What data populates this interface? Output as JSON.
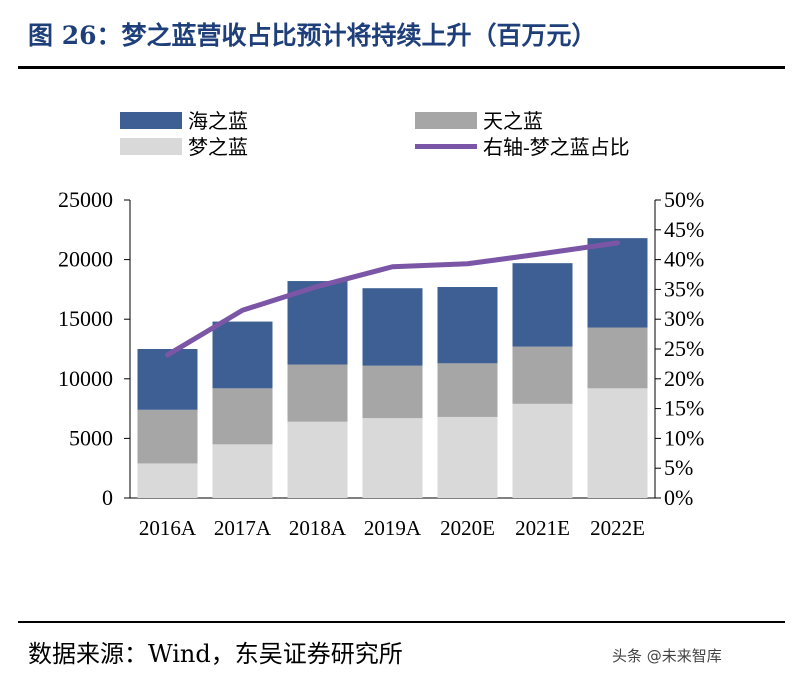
{
  "title": "图 26：梦之蓝营收占比预计将持续上升（百万元）",
  "source": "数据来源：Wind，东吴证券研究所",
  "watermark": "头条 @未来智库",
  "colors": {
    "title": "#1f3f7a",
    "haizhilan": "#3d5f93",
    "tianzhilan": "#a6a6a6",
    "mengzhilan": "#d9d9d9",
    "ratio_line": "#7b56a6"
  },
  "chart_data": {
    "type": "bar",
    "stacked": true,
    "title": "梦之蓝营收占比预计将持续上升（百万元）",
    "categories": [
      "2016A",
      "2017A",
      "2018A",
      "2019A",
      "2020E",
      "2021E",
      "2022E"
    ],
    "series": [
      {
        "name": "梦之蓝",
        "axis": "left",
        "values": [
          2900,
          4500,
          6400,
          6700,
          6800,
          7900,
          9200
        ]
      },
      {
        "name": "天之蓝",
        "axis": "left",
        "values": [
          4500,
          4700,
          4800,
          4400,
          4500,
          4800,
          5100
        ]
      },
      {
        "name": "海之蓝",
        "axis": "left",
        "values": [
          5100,
          5600,
          7000,
          6500,
          6400,
          7000,
          7500
        ]
      }
    ],
    "line_series": {
      "name": "右轴-梦之蓝占比",
      "axis": "right",
      "type": "line",
      "values": [
        24,
        31.5,
        35.5,
        38.8,
        39.3,
        41,
        42.8
      ]
    },
    "legend": [
      "海之蓝",
      "天之蓝",
      "梦之蓝",
      "右轴-梦之蓝占比"
    ],
    "ylim": [
      0,
      25000
    ],
    "yticks": [
      "0",
      "5000",
      "10000",
      "15000",
      "20000",
      "25000"
    ],
    "y2lim": [
      0,
      50
    ],
    "y2ticks": [
      "0%",
      "5%",
      "10%",
      "15%",
      "20%",
      "25%",
      "30%",
      "35%",
      "40%",
      "45%",
      "50%"
    ],
    "xlabel": "",
    "ylabel": "",
    "grid": false
  }
}
